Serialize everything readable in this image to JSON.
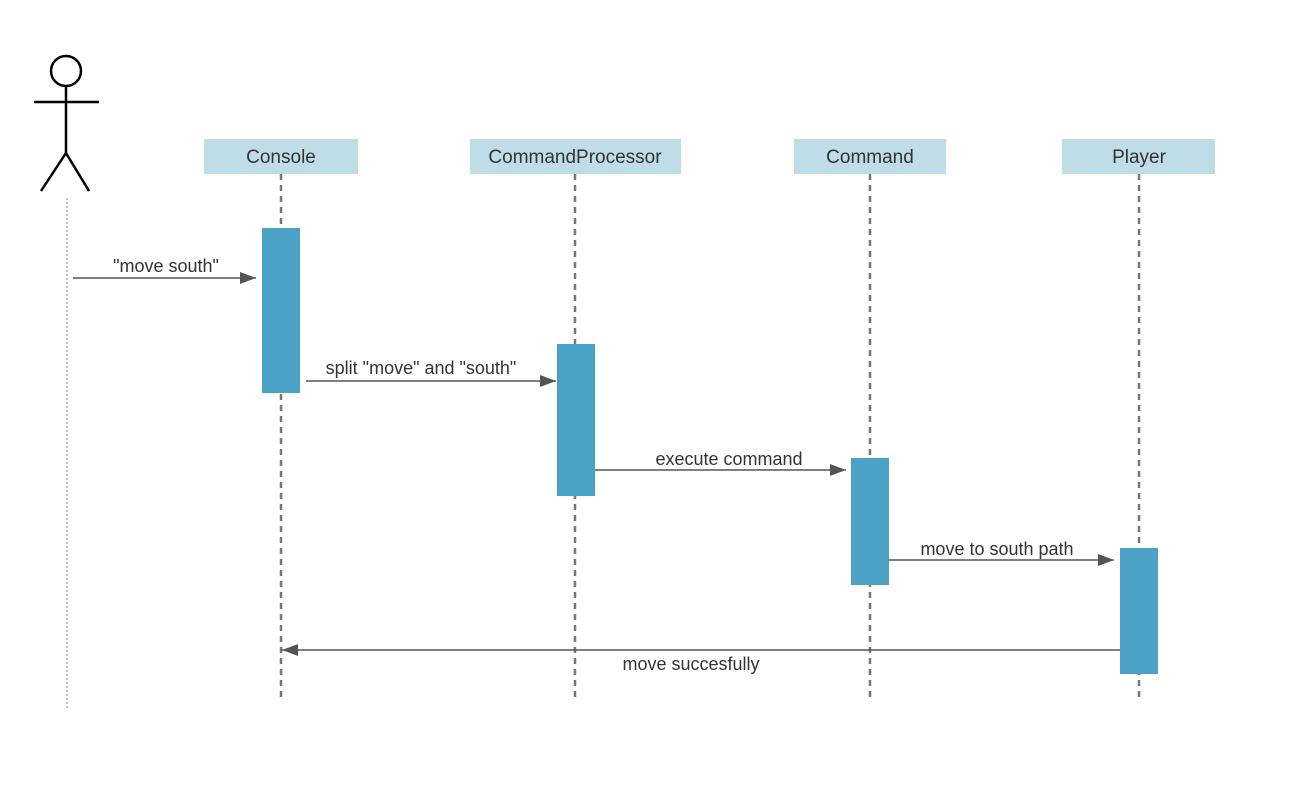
{
  "diagram": {
    "type": "sequence",
    "actor": {
      "name": ""
    },
    "participants": [
      {
        "id": "console",
        "label": "Console"
      },
      {
        "id": "processor",
        "label": "CommandProcessor"
      },
      {
        "id": "command",
        "label": "Command"
      },
      {
        "id": "player",
        "label": "Player"
      }
    ],
    "messages": [
      {
        "from": "actor",
        "to": "console",
        "label": "\"move south\""
      },
      {
        "from": "console",
        "to": "processor",
        "label": "split \"move\" and \"south\""
      },
      {
        "from": "processor",
        "to": "command",
        "label": "execute command"
      },
      {
        "from": "command",
        "to": "player",
        "label": "move to south path"
      },
      {
        "from": "player",
        "to": "console",
        "label": "move succesfully"
      }
    ],
    "colors": {
      "participant_box": "#bfdde7",
      "activation": "#4aa3c7",
      "lifeline": "#777777",
      "arrow": "#555555",
      "actor": "#000000"
    }
  }
}
